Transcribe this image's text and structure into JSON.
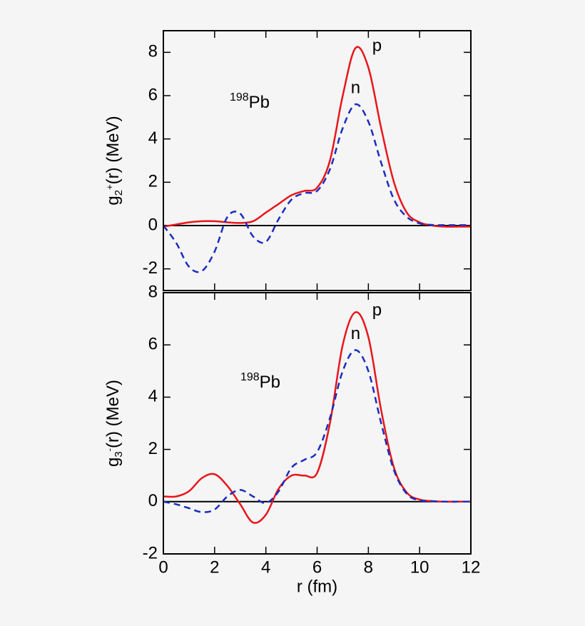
{
  "chart_data": [
    {
      "type": "line",
      "ylabel": {
        "base": "g",
        "sub": "2",
        "sup": "+",
        "rest": "(r) (MeV)"
      },
      "annotation": {
        "sup": "198",
        "text": "Pb"
      },
      "x": [
        0,
        0.5,
        1,
        1.5,
        2,
        2.5,
        3,
        3.5,
        4,
        4.5,
        5,
        5.5,
        6,
        6.5,
        7,
        7.5,
        8,
        8.5,
        9,
        9.5,
        10,
        10.5,
        11,
        11.5,
        12
      ],
      "series": [
        {
          "name": "p",
          "color": "#e8161b",
          "dashed": false,
          "values": [
            -0.05,
            0.05,
            0.15,
            0.2,
            0.2,
            0.15,
            0.12,
            0.2,
            0.6,
            1.0,
            1.4,
            1.6,
            1.75,
            3.0,
            6.0,
            8.2,
            7.3,
            4.5,
            2.0,
            0.6,
            0.15,
            0.0,
            -0.05,
            -0.05,
            -0.05
          ]
        },
        {
          "name": "n",
          "color": "#1a2dbd",
          "dashed": true,
          "values": [
            0,
            -0.8,
            -1.9,
            -2.1,
            -1.2,
            0.4,
            0.55,
            -0.5,
            -0.75,
            0.3,
            1.2,
            1.5,
            1.6,
            2.6,
            4.5,
            5.6,
            4.8,
            2.9,
            1.2,
            0.4,
            0.1,
            0.03,
            0.02,
            0.02,
            0.02
          ]
        }
      ],
      "xlim": [
        0,
        12
      ],
      "xticks": [
        0,
        2,
        4,
        6,
        8,
        10,
        12
      ],
      "ylim": [
        -3,
        9
      ],
      "yticks": [
        -2,
        0,
        2,
        4,
        6,
        8
      ]
    },
    {
      "type": "line",
      "ylabel": {
        "base": "g",
        "sub": "3",
        "sup": "-",
        "rest": "(r) (MeV)"
      },
      "xlabel": "r (fm)",
      "annotation": {
        "sup": "198",
        "text": "Pb"
      },
      "x": [
        0,
        0.5,
        1,
        1.5,
        2,
        2.5,
        3,
        3.5,
        4,
        4.5,
        5,
        5.5,
        6,
        6.5,
        7,
        7.5,
        8,
        8.5,
        9,
        9.5,
        10,
        10.5,
        11,
        11.5,
        12
      ],
      "series": [
        {
          "name": "p",
          "color": "#e8161b",
          "dashed": false,
          "values": [
            0.2,
            0.2,
            0.4,
            0.9,
            1.05,
            0.6,
            -0.1,
            -0.8,
            -0.5,
            0.5,
            1.0,
            1.0,
            1.1,
            3.0,
            6.0,
            7.25,
            6.3,
            3.5,
            1.3,
            0.35,
            0.08,
            0.02,
            0,
            0,
            0
          ]
        },
        {
          "name": "n",
          "color": "#1a2dbd",
          "dashed": true,
          "values": [
            0,
            -0.1,
            -0.25,
            -0.4,
            -0.3,
            0.2,
            0.45,
            0.2,
            -0.05,
            0.4,
            1.3,
            1.6,
            1.9,
            3.2,
            5.0,
            5.8,
            5.0,
            3.0,
            1.2,
            0.3,
            0.05,
            0.02,
            0,
            0,
            0
          ]
        }
      ],
      "xlim": [
        0,
        12
      ],
      "xticks": [
        0,
        2,
        4,
        6,
        8,
        10,
        12
      ],
      "ylim": [
        -2,
        8
      ],
      "yticks": [
        -2,
        0,
        2,
        4,
        6,
        8
      ]
    }
  ]
}
